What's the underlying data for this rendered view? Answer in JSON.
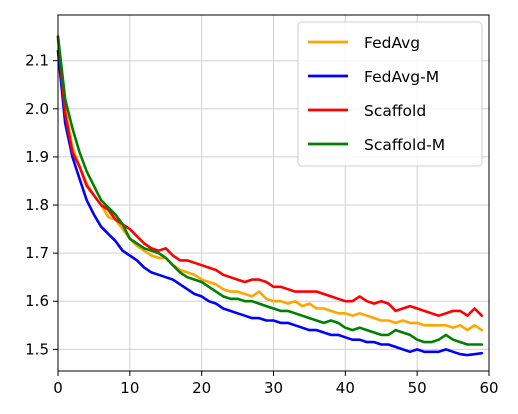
{
  "chart_data": {
    "type": "line",
    "title": "",
    "xlabel": "",
    "ylabel": "",
    "xlim": [
      0,
      60
    ],
    "ylim": [
      1.455,
      2.195
    ],
    "xticks": [
      0,
      10,
      20,
      30,
      40,
      50,
      60
    ],
    "yticks": [
      1.5,
      1.6,
      1.7,
      1.8,
      1.9,
      2.0,
      2.1
    ],
    "xtick_labels": [
      "0",
      "10",
      "20",
      "30",
      "40",
      "50",
      "60"
    ],
    "ytick_labels": [
      "1.5",
      "1.6",
      "1.7",
      "1.8",
      "1.9",
      "2.0",
      "2.1"
    ],
    "grid": true,
    "legend_position": "top-right",
    "x": [
      0,
      1,
      2,
      3,
      4,
      5,
      6,
      7,
      8,
      9,
      10,
      11,
      12,
      13,
      14,
      15,
      16,
      17,
      18,
      19,
      20,
      21,
      22,
      23,
      24,
      25,
      26,
      27,
      28,
      29,
      30,
      31,
      32,
      33,
      34,
      35,
      36,
      37,
      38,
      39,
      40,
      41,
      42,
      43,
      44,
      45,
      46,
      47,
      48,
      49,
      50,
      51,
      52,
      53,
      54,
      55,
      56,
      57,
      58,
      59
    ],
    "series": [
      {
        "name": "FedAvg",
        "color": "#FFA500",
        "values": [
          2.145,
          2.0,
          1.92,
          1.88,
          1.845,
          1.82,
          1.8,
          1.775,
          1.77,
          1.75,
          1.73,
          1.715,
          1.705,
          1.695,
          1.69,
          1.69,
          1.675,
          1.665,
          1.66,
          1.655,
          1.645,
          1.64,
          1.635,
          1.625,
          1.62,
          1.62,
          1.615,
          1.61,
          1.62,
          1.605,
          1.6,
          1.6,
          1.595,
          1.6,
          1.59,
          1.595,
          1.585,
          1.585,
          1.58,
          1.575,
          1.575,
          1.57,
          1.575,
          1.57,
          1.565,
          1.56,
          1.56,
          1.555,
          1.56,
          1.555,
          1.555,
          1.55,
          1.55,
          1.55,
          1.55,
          1.545,
          1.55,
          1.54,
          1.55,
          1.54
        ]
      },
      {
        "name": "FedAvg-M",
        "color": "#0000FF",
        "values": [
          2.12,
          1.97,
          1.9,
          1.855,
          1.81,
          1.78,
          1.755,
          1.74,
          1.725,
          1.705,
          1.695,
          1.685,
          1.67,
          1.66,
          1.655,
          1.65,
          1.645,
          1.635,
          1.625,
          1.615,
          1.61,
          1.6,
          1.595,
          1.585,
          1.58,
          1.575,
          1.57,
          1.565,
          1.565,
          1.56,
          1.56,
          1.555,
          1.555,
          1.55,
          1.545,
          1.54,
          1.54,
          1.535,
          1.53,
          1.53,
          1.525,
          1.52,
          1.52,
          1.515,
          1.515,
          1.51,
          1.51,
          1.505,
          1.5,
          1.495,
          1.5,
          1.495,
          1.495,
          1.495,
          1.5,
          1.495,
          1.49,
          1.488,
          1.49,
          1.492
        ]
      },
      {
        "name": "Scaffold",
        "color": "#FF0000",
        "values": [
          2.15,
          1.99,
          1.91,
          1.88,
          1.84,
          1.82,
          1.8,
          1.79,
          1.77,
          1.76,
          1.75,
          1.735,
          1.72,
          1.71,
          1.705,
          1.71,
          1.695,
          1.685,
          1.685,
          1.68,
          1.675,
          1.67,
          1.665,
          1.655,
          1.65,
          1.645,
          1.64,
          1.645,
          1.645,
          1.64,
          1.63,
          1.63,
          1.625,
          1.62,
          1.62,
          1.62,
          1.62,
          1.615,
          1.61,
          1.605,
          1.6,
          1.6,
          1.61,
          1.6,
          1.595,
          1.6,
          1.595,
          1.58,
          1.585,
          1.59,
          1.585,
          1.58,
          1.575,
          1.57,
          1.575,
          1.58,
          1.58,
          1.57,
          1.585,
          1.57
        ]
      },
      {
        "name": "Scaffold-M",
        "color": "#008000",
        "values": [
          2.15,
          2.02,
          1.96,
          1.91,
          1.87,
          1.84,
          1.81,
          1.795,
          1.78,
          1.76,
          1.73,
          1.72,
          1.71,
          1.705,
          1.7,
          1.69,
          1.675,
          1.66,
          1.65,
          1.645,
          1.64,
          1.63,
          1.62,
          1.61,
          1.605,
          1.605,
          1.6,
          1.6,
          1.595,
          1.59,
          1.585,
          1.58,
          1.58,
          1.575,
          1.57,
          1.565,
          1.56,
          1.555,
          1.56,
          1.555,
          1.545,
          1.54,
          1.545,
          1.54,
          1.535,
          1.53,
          1.53,
          1.54,
          1.535,
          1.53,
          1.52,
          1.515,
          1.515,
          1.52,
          1.53,
          1.52,
          1.515,
          1.51,
          1.51,
          1.51
        ]
      }
    ]
  }
}
